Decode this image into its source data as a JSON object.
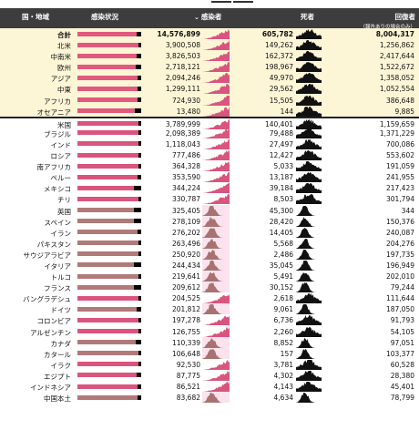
{
  "header": {
    "country": "国・地域",
    "status": "感染状況",
    "sort_arrow": "⌄",
    "cases": "感染者",
    "deaths": "死者",
    "recovered": "回復者",
    "recovered_note": "（報告ありの場合のみ）"
  },
  "colors": {
    "region_bar": "#e05a7d",
    "country_bar_a": "#d9557e",
    "country_bar_b": "#b07a78",
    "sparkline_cases": "#d9557e",
    "sparkline_cases_b": "#a77270",
    "sparkline_deaths": "#111111",
    "summary_bg": "#fcf5d6"
  },
  "summary_rows": [
    {
      "name": "合計",
      "cases": "14,576,899",
      "deaths": "605,782",
      "recovered": "8,004,317",
      "bar": 0.93
    },
    {
      "name": "北米",
      "cases": "3,900,508",
      "deaths": "149,262",
      "recovered": "1,256,862",
      "bar": 0.95
    },
    {
      "name": "中南米",
      "cases": "3,826,503",
      "deaths": "162,372",
      "recovered": "2,417,644",
      "bar": 0.93
    },
    {
      "name": "欧州",
      "cases": "2,718,121",
      "deaths": "198,967",
      "recovered": "1,522,672",
      "bar": 0.92
    },
    {
      "name": "アジア",
      "cases": "2,094,246",
      "deaths": "49,970",
      "recovered": "1,358,052",
      "bar": 0.94
    },
    {
      "name": "中東",
      "cases": "1,299,111",
      "deaths": "29,562",
      "recovered": "1,052,554",
      "bar": 0.94
    },
    {
      "name": "アフリカ",
      "cases": "724,930",
      "deaths": "15,505",
      "recovered": "386,648",
      "bar": 0.94
    },
    {
      "name": "オセアニア",
      "cases": "13,480",
      "deaths": "144",
      "recovered": "9,885",
      "bar": 0.9
    }
  ],
  "country_rows": [
    {
      "name": "米国",
      "cases": "3,789,999",
      "deaths": "140,401",
      "recovered": "1,159,659",
      "bar": 0.95,
      "tone": "a"
    },
    {
      "name": "ブラジル",
      "cases": "2,098,389",
      "deaths": "79,488",
      "recovered": "1,371,229",
      "bar": 0.96,
      "tone": "a"
    },
    {
      "name": "インド",
      "cases": "1,118,043",
      "deaths": "27,497",
      "recovered": "700,086",
      "bar": 0.96,
      "tone": "a"
    },
    {
      "name": "ロシア",
      "cases": "777,486",
      "deaths": "12,427",
      "recovered": "553,602",
      "bar": 0.95,
      "tone": "a"
    },
    {
      "name": "南アフリカ",
      "cases": "364,328",
      "deaths": "5,033",
      "recovered": "191,059",
      "bar": 0.95,
      "tone": "a"
    },
    {
      "name": "ペルー",
      "cases": "353,590",
      "deaths": "13,187",
      "recovered": "241,955",
      "bar": 0.94,
      "tone": "a"
    },
    {
      "name": "メキシコ",
      "cases": "344,224",
      "deaths": "39,184",
      "recovered": "217,423",
      "bar": 0.88,
      "tone": "a"
    },
    {
      "name": "チリ",
      "cases": "330,787",
      "deaths": "8,503",
      "recovered": "301,794",
      "bar": 0.95,
      "tone": "a"
    },
    {
      "name": "英国",
      "cases": "325,405",
      "deaths": "45,300",
      "recovered": "344",
      "bar": 0.88,
      "tone": "b"
    },
    {
      "name": "スペイン",
      "cases": "278,109",
      "deaths": "28,420",
      "recovered": "150,376",
      "bar": 0.89,
      "tone": "b"
    },
    {
      "name": "イラン",
      "cases": "276,202",
      "deaths": "14,405",
      "recovered": "240,087",
      "bar": 0.94,
      "tone": "b"
    },
    {
      "name": "パキスタン",
      "cases": "263,496",
      "deaths": "5,568",
      "recovered": "204,276",
      "bar": 0.95,
      "tone": "b"
    },
    {
      "name": "サウジアラビア",
      "cases": "250,920",
      "deaths": "2,486",
      "recovered": "197,735",
      "bar": 0.96,
      "tone": "b"
    },
    {
      "name": "イタリア",
      "cases": "244,434",
      "deaths": "35,045",
      "recovered": "196,949",
      "bar": 0.88,
      "tone": "b"
    },
    {
      "name": "トルコ",
      "cases": "219,641",
      "deaths": "5,491",
      "recovered": "202,010",
      "bar": 0.95,
      "tone": "b"
    },
    {
      "name": "フランス",
      "cases": "209,612",
      "deaths": "30,152",
      "recovered": "79,244",
      "bar": 0.88,
      "tone": "b"
    },
    {
      "name": "バングラデシュ",
      "cases": "204,525",
      "deaths": "2,618",
      "recovered": "111,644",
      "bar": 0.95,
      "tone": "a"
    },
    {
      "name": "ドイツ",
      "cases": "201,812",
      "deaths": "9,061",
      "recovered": "187,050",
      "bar": 0.93,
      "tone": "b"
    },
    {
      "name": "コロンビア",
      "cases": "197,278",
      "deaths": "6,736",
      "recovered": "91,793",
      "bar": 0.95,
      "tone": "a"
    },
    {
      "name": "アルゼンチン",
      "cases": "126,755",
      "deaths": "2,260",
      "recovered": "54,105",
      "bar": 0.96,
      "tone": "a"
    },
    {
      "name": "カナダ",
      "cases": "110,339",
      "deaths": "8,852",
      "recovered": "97,051",
      "bar": 0.91,
      "tone": "b"
    },
    {
      "name": "カタール",
      "cases": "106,648",
      "deaths": "157",
      "recovered": "103,377",
      "bar": 0.96,
      "tone": "b"
    },
    {
      "name": "イラク",
      "cases": "92,530",
      "deaths": "3,781",
      "recovered": "60,528",
      "bar": 0.95,
      "tone": "a"
    },
    {
      "name": "エジプト",
      "cases": "87,775",
      "deaths": "4,302",
      "recovered": "28,380",
      "bar": 0.93,
      "tone": "a"
    },
    {
      "name": "インドネシア",
      "cases": "86,521",
      "deaths": "4,143",
      "recovered": "45,401",
      "bar": 0.94,
      "tone": "a"
    },
    {
      "name": "中国本土",
      "cases": "83,682",
      "deaths": "4,634",
      "recovered": "78,799",
      "bar": 0.94,
      "tone": "b"
    }
  ]
}
